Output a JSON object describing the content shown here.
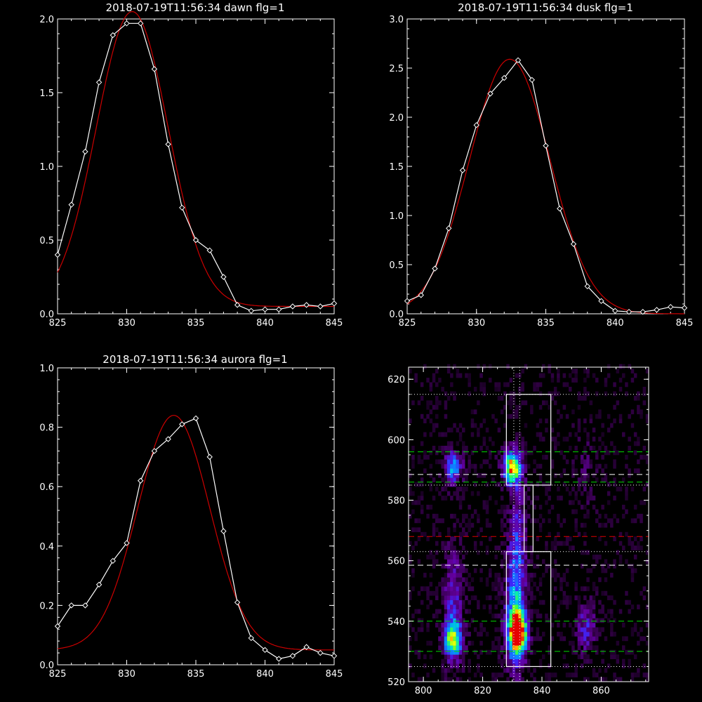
{
  "chart_data": [
    {
      "type": "line",
      "title": "2018-07-19T11:56:34 dawn flg=1",
      "xlim": [
        825,
        845
      ],
      "ylim": [
        0,
        2.0
      ],
      "xticks": [
        825,
        830,
        835,
        840,
        845
      ],
      "yticks": [
        0.0,
        0.5,
        1.0,
        1.5,
        2.0
      ],
      "ytick_labels": [
        "0.0",
        "0.5",
        "1.0",
        "1.5",
        "2.0"
      ],
      "series": [
        {
          "kind": "observed",
          "color": "#ffffff",
          "marker": "diamond",
          "x": [
            825,
            826,
            827,
            828,
            829,
            830,
            831,
            832,
            833,
            834,
            835,
            836,
            837,
            838,
            839,
            840,
            841,
            842,
            843,
            844,
            845
          ],
          "y": [
            0.4,
            0.74,
            1.1,
            1.57,
            1.89,
            1.97,
            1.97,
            1.66,
            1.15,
            0.72,
            0.5,
            0.43,
            0.25,
            0.06,
            0.02,
            0.03,
            0.03,
            0.05,
            0.06,
            0.05,
            0.07
          ]
        },
        {
          "kind": "fit",
          "color": "#cc0000",
          "gauss": {
            "amp": 2.0,
            "center": 830.4,
            "sigma": 2.6,
            "offset": 0.05
          }
        }
      ]
    },
    {
      "type": "line",
      "title": "2018-07-19T11:56:34 dusk flg=1",
      "xlim": [
        825,
        845
      ],
      "ylim": [
        0,
        3.0
      ],
      "xticks": [
        825,
        830,
        835,
        840,
        845
      ],
      "yticks": [
        0.0,
        0.5,
        1.0,
        1.5,
        2.0,
        2.5,
        3.0
      ],
      "ytick_labels": [
        "0.0",
        "0.5",
        "1.0",
        "1.5",
        "2.0",
        "2.5",
        "3.0"
      ],
      "series": [
        {
          "kind": "observed",
          "color": "#ffffff",
          "marker": "diamond",
          "x": [
            825,
            826,
            827,
            828,
            829,
            830,
            831,
            832,
            833,
            834,
            835,
            836,
            837,
            838,
            839,
            840,
            841,
            842,
            843,
            844,
            845
          ],
          "y": [
            0.13,
            0.19,
            0.46,
            0.87,
            1.46,
            1.92,
            2.24,
            2.4,
            2.58,
            2.38,
            1.71,
            1.07,
            0.71,
            0.28,
            0.13,
            0.03,
            0.02,
            0.02,
            0.04,
            0.07,
            0.06
          ]
        },
        {
          "kind": "fit",
          "color": "#cc0000",
          "gauss": {
            "amp": 2.59,
            "center": 832.4,
            "sigma": 2.9,
            "offset": 0.0
          }
        }
      ]
    },
    {
      "type": "line",
      "title": "2018-07-19T11:56:34 aurora flg=1",
      "xlim": [
        825,
        845
      ],
      "ylim": [
        0,
        1.0
      ],
      "xticks": [
        825,
        830,
        835,
        840,
        845
      ],
      "yticks": [
        0.0,
        0.2,
        0.4,
        0.6,
        0.8,
        1.0
      ],
      "ytick_labels": [
        "0.0",
        "0.2",
        "0.4",
        "0.6",
        "0.8",
        "1.0"
      ],
      "series": [
        {
          "kind": "observed",
          "color": "#ffffff",
          "marker": "diamond",
          "x": [
            825,
            826,
            827,
            828,
            829,
            830,
            831,
            832,
            833,
            834,
            835,
            836,
            837,
            838,
            839,
            840,
            841,
            842,
            843,
            844,
            845
          ],
          "y": [
            0.13,
            0.2,
            0.2,
            0.27,
            0.35,
            0.41,
            0.62,
            0.72,
            0.76,
            0.81,
            0.83,
            0.7,
            0.45,
            0.21,
            0.09,
            0.05,
            0.02,
            0.03,
            0.06,
            0.04,
            0.03
          ]
        },
        {
          "kind": "fit",
          "color": "#cc0000",
          "gauss": {
            "amp": 0.79,
            "center": 833.4,
            "sigma": 2.6,
            "offset": 0.05
          }
        }
      ]
    },
    {
      "type": "heatmap",
      "title": "",
      "xlim": [
        795,
        876
      ],
      "ylim": [
        520,
        624
      ],
      "xticks": [
        800,
        820,
        840,
        860
      ],
      "yticks": [
        520,
        540,
        560,
        580,
        600,
        620
      ],
      "blobs": [
        {
          "x": 810,
          "y": 591,
          "sx": 2.2,
          "sy": 4,
          "amp": 0.55
        },
        {
          "x": 810,
          "y": 545,
          "sx": 2.5,
          "sy": 14,
          "amp": 0.35
        },
        {
          "x": 810,
          "y": 534,
          "sx": 2.3,
          "sy": 4,
          "amp": 0.6
        },
        {
          "x": 830,
          "y": 591,
          "sx": 2.2,
          "sy": 4,
          "amp": 0.9
        },
        {
          "x": 831,
          "y": 545,
          "sx": 2.4,
          "sy": 15,
          "amp": 0.55
        },
        {
          "x": 832,
          "y": 536,
          "sx": 2.2,
          "sy": 5,
          "amp": 0.95
        },
        {
          "x": 832,
          "y": 572,
          "sx": 2,
          "sy": 12,
          "amp": 0.25
        },
        {
          "x": 855,
          "y": 538,
          "sx": 2.3,
          "sy": 6,
          "amp": 0.35
        },
        {
          "x": 855,
          "y": 590,
          "sx": 2.5,
          "sy": 10,
          "amp": 0.12
        }
      ],
      "hlines": [
        {
          "y": 615,
          "color": "#ffffff",
          "style": "dotted"
        },
        {
          "y": 596,
          "color": "#00dd00",
          "style": "dashed"
        },
        {
          "y": 588.5,
          "color": "#ffffff",
          "style": "dashed"
        },
        {
          "y": 586,
          "color": "#00dd00",
          "style": "dashed"
        },
        {
          "y": 585,
          "color": "#ffffff",
          "style": "dotted"
        },
        {
          "y": 568,
          "color": "#dd0000",
          "style": "dashed"
        },
        {
          "y": 563,
          "color": "#ffffff",
          "style": "dotted"
        },
        {
          "y": 558.5,
          "color": "#ffffff",
          "style": "dashed"
        },
        {
          "y": 540,
          "color": "#00dd00",
          "style": "dashed"
        },
        {
          "y": 530,
          "color": "#00dd00",
          "style": "dashed"
        },
        {
          "y": 525,
          "color": "#ffffff",
          "style": "dotted"
        }
      ],
      "vlines": [
        {
          "x": 830.5,
          "color": "#ffffff",
          "style": "dotted"
        },
        {
          "x": 832.5,
          "color": "#ffffff",
          "style": "dotted"
        }
      ],
      "rects": [
        {
          "x0": 828,
          "x1": 843,
          "y0": 585,
          "y1": 615
        },
        {
          "x0": 834,
          "x1": 837,
          "y0": 563,
          "y1": 585
        },
        {
          "x0": 828,
          "x1": 843,
          "y0": 525,
          "y1": 563
        }
      ]
    }
  ]
}
